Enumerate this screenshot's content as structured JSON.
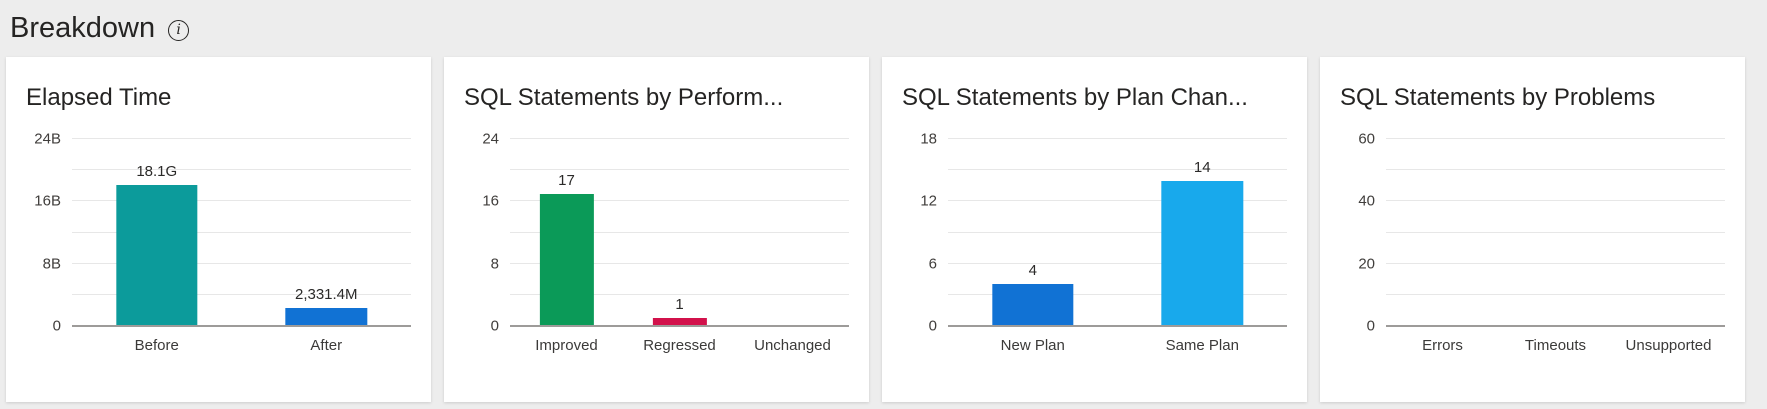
{
  "header": {
    "title": "Breakdown",
    "info_glyph": "i"
  },
  "colors": {
    "page_background": "#EDEDED",
    "card_background": "#FFFFFF",
    "title_text": "#252423",
    "axis_text": "#403E3C",
    "gridline": "#E7E7E7",
    "baseline": "#9D9B99",
    "teal": "#0C9B9B",
    "blue": "#1172D4",
    "green": "#0B9A58",
    "crimson": "#D2114B",
    "light_blue": "#18A9EC"
  },
  "chart_data": [
    {
      "type": "bar",
      "title": "Elapsed Time",
      "categories": [
        "Before",
        "After"
      ],
      "values": [
        18.1,
        2.3314
      ],
      "value_labels": [
        "18.1G",
        "2,331.4M"
      ],
      "bar_colors": [
        "#0C9B9B",
        "#1172D4"
      ],
      "ylim": [
        0,
        24
      ],
      "grid_step": 4,
      "yticks": [
        {
          "value": 0,
          "label": "0"
        },
        {
          "value": 8,
          "label": "8B"
        },
        {
          "value": 16,
          "label": "16B"
        },
        {
          "value": 24,
          "label": "24B"
        }
      ],
      "legend": "none",
      "grid": true
    },
    {
      "type": "bar",
      "title": "SQL Statements by Perform...",
      "categories": [
        "Improved",
        "Regressed",
        "Unchanged"
      ],
      "values": [
        17,
        1,
        0
      ],
      "value_labels": [
        "17",
        "1",
        ""
      ],
      "bar_colors": [
        "#0B9A58",
        "#D2114B",
        null
      ],
      "ylim": [
        0,
        24
      ],
      "grid_step": 4,
      "yticks": [
        {
          "value": 0,
          "label": "0"
        },
        {
          "value": 8,
          "label": "8"
        },
        {
          "value": 16,
          "label": "16"
        },
        {
          "value": 24,
          "label": "24"
        }
      ],
      "legend": "none",
      "grid": true
    },
    {
      "type": "bar",
      "title": "SQL Statements by Plan Chan...",
      "categories": [
        "New Plan",
        "Same Plan"
      ],
      "values": [
        4,
        14
      ],
      "value_labels": [
        "4",
        "14"
      ],
      "bar_colors": [
        "#1172D4",
        "#18A9EC"
      ],
      "ylim": [
        0,
        18
      ],
      "grid_step": 3,
      "yticks": [
        {
          "value": 0,
          "label": "0"
        },
        {
          "value": 6,
          "label": "6"
        },
        {
          "value": 12,
          "label": "12"
        },
        {
          "value": 18,
          "label": "18"
        }
      ],
      "legend": "none",
      "grid": true
    },
    {
      "type": "bar",
      "title": "SQL Statements by Problems",
      "categories": [
        "Errors",
        "Timeouts",
        "Unsupported"
      ],
      "values": [
        0,
        0,
        0
      ],
      "value_labels": [
        "",
        "",
        ""
      ],
      "bar_colors": [
        null,
        null,
        null
      ],
      "ylim": [
        0,
        60
      ],
      "grid_step": 10,
      "yticks": [
        {
          "value": 0,
          "label": "0"
        },
        {
          "value": 20,
          "label": "20"
        },
        {
          "value": 40,
          "label": "40"
        },
        {
          "value": 60,
          "label": "60"
        }
      ],
      "legend": "none",
      "grid": true
    }
  ]
}
